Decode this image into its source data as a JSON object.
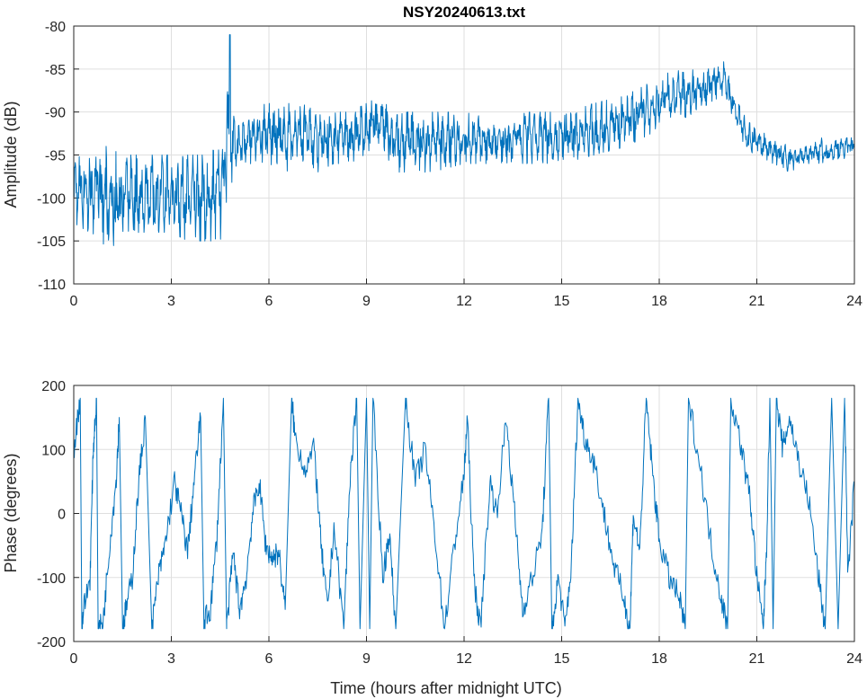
{
  "chart_data": [
    {
      "type": "line",
      "title": "NSY20240613.txt",
      "xlabel": "",
      "ylabel": "Amplitude (dB)",
      "xlim": [
        0,
        24
      ],
      "ylim": [
        -110,
        -80
      ],
      "xticks": [
        "0",
        "3",
        "6",
        "9",
        "12",
        "15",
        "18",
        "21",
        "24"
      ],
      "yticks": [
        "-80",
        "-85",
        "-90",
        "-95",
        "-100",
        "-105",
        "-110"
      ],
      "grid": true,
      "color": "#0072BD",
      "envelope_note": "columns: time (h), min dB, max dB",
      "envelope": [
        [
          0,
          -103,
          -95
        ],
        [
          0.5,
          -104,
          -94
        ],
        [
          1,
          -106,
          -94
        ],
        [
          1.5,
          -105,
          -95
        ],
        [
          2,
          -104,
          -95
        ],
        [
          2.5,
          -104,
          -95
        ],
        [
          3,
          -104,
          -95
        ],
        [
          3.5,
          -105,
          -95
        ],
        [
          4,
          -105,
          -95
        ],
        [
          4.5,
          -105,
          -94
        ],
        [
          4.8,
          -100,
          -81
        ],
        [
          5,
          -97,
          -92
        ],
        [
          5.5,
          -96,
          -89
        ],
        [
          6,
          -96,
          -89
        ],
        [
          6.5,
          -97,
          -89
        ],
        [
          7,
          -96,
          -89
        ],
        [
          7.5,
          -97,
          -90
        ],
        [
          8,
          -96,
          -90
        ],
        [
          8.5,
          -96,
          -90
        ],
        [
          9,
          -95,
          -89
        ],
        [
          9.5,
          -94,
          -88
        ],
        [
          9.8,
          -97,
          -91
        ],
        [
          10,
          -97,
          -90
        ],
        [
          11,
          -97,
          -90
        ],
        [
          12,
          -96,
          -90
        ],
        [
          13,
          -96,
          -91
        ],
        [
          14,
          -96,
          -90
        ],
        [
          15,
          -96,
          -90
        ],
        [
          16,
          -95,
          -89
        ],
        [
          17,
          -94,
          -88
        ],
        [
          17.5,
          -93,
          -87
        ],
        [
          18,
          -92,
          -86
        ],
        [
          18.5,
          -90,
          -85
        ],
        [
          19,
          -91,
          -85
        ],
        [
          19.5,
          -89,
          -85
        ],
        [
          20,
          -88,
          -84
        ],
        [
          20.3,
          -91,
          -88
        ],
        [
          20.7,
          -95,
          -91
        ],
        [
          21,
          -95,
          -92
        ],
        [
          21.5,
          -96,
          -93
        ],
        [
          22,
          -97,
          -94
        ],
        [
          22.5,
          -96,
          -94
        ],
        [
          23,
          -96,
          -93
        ],
        [
          23.5,
          -96,
          -93
        ],
        [
          24,
          -95,
          -93
        ]
      ]
    },
    {
      "type": "line",
      "title": "",
      "xlabel": "Time (hours after midnight UTC)",
      "ylabel": "Phase (degrees)",
      "xlim": [
        0,
        24
      ],
      "ylim": [
        -200,
        200
      ],
      "xticks": [
        "0",
        "3",
        "6",
        "9",
        "12",
        "15",
        "18",
        "21",
        "24"
      ],
      "yticks": [
        "200",
        "100",
        "0",
        "-100",
        "-200"
      ],
      "grid": true,
      "color": "#0072BD",
      "points": [
        [
          0,
          100
        ],
        [
          0.2,
          180
        ],
        [
          0.25,
          -180
        ],
        [
          0.3,
          -150
        ],
        [
          0.5,
          -100
        ],
        [
          0.6,
          100
        ],
        [
          0.7,
          180
        ],
        [
          0.75,
          -180
        ],
        [
          0.9,
          -170
        ],
        [
          1.1,
          -50
        ],
        [
          1.3,
          50
        ],
        [
          1.4,
          150
        ],
        [
          1.5,
          -180
        ],
        [
          1.6,
          -150
        ],
        [
          1.8,
          -100
        ],
        [
          2.0,
          50
        ],
        [
          2.2,
          150
        ],
        [
          2.4,
          -180
        ],
        [
          2.6,
          -100
        ],
        [
          2.8,
          -50
        ],
        [
          3.1,
          50
        ],
        [
          3.3,
          0
        ],
        [
          3.5,
          -60
        ],
        [
          3.7,
          50
        ],
        [
          3.9,
          150
        ],
        [
          4.0,
          -170
        ],
        [
          4.2,
          -150
        ],
        [
          4.4,
          -40
        ],
        [
          4.6,
          180
        ],
        [
          4.7,
          -180
        ],
        [
          4.9,
          -60
        ],
        [
          5.1,
          -150
        ],
        [
          5.3,
          -100
        ],
        [
          5.5,
          0
        ],
        [
          5.7,
          50
        ],
        [
          5.9,
          -50
        ],
        [
          6.1,
          -70
        ],
        [
          6.3,
          -60
        ],
        [
          6.5,
          -150
        ],
        [
          6.7,
          180
        ],
        [
          6.8,
          120
        ],
        [
          7.1,
          70
        ],
        [
          7.4,
          100
        ],
        [
          7.6,
          -50
        ],
        [
          7.8,
          -150
        ],
        [
          8.0,
          -20
        ],
        [
          8.3,
          -180
        ],
        [
          8.5,
          60
        ],
        [
          8.7,
          180
        ],
        [
          8.8,
          -180
        ],
        [
          9.0,
          180
        ],
        [
          9.1,
          -180
        ],
        [
          9.2,
          180
        ],
        [
          9.5,
          -100
        ],
        [
          9.7,
          -30
        ],
        [
          9.9,
          -180
        ],
        [
          10.2,
          180
        ],
        [
          10.5,
          50
        ],
        [
          10.8,
          100
        ],
        [
          11.1,
          -30
        ],
        [
          11.4,
          -180
        ],
        [
          11.7,
          -50
        ],
        [
          12.0,
          60
        ],
        [
          12.1,
          150
        ],
        [
          12.3,
          -100
        ],
        [
          12.5,
          -180
        ],
        [
          12.8,
          50
        ],
        [
          13.0,
          0
        ],
        [
          13.3,
          150
        ],
        [
          13.6,
          -30
        ],
        [
          13.8,
          -150
        ],
        [
          14.1,
          -100
        ],
        [
          14.4,
          -30
        ],
        [
          14.6,
          180
        ],
        [
          14.7,
          -180
        ],
        [
          14.9,
          -100
        ],
        [
          15.1,
          -180
        ],
        [
          15.3,
          -80
        ],
        [
          15.5,
          180
        ],
        [
          15.7,
          120
        ],
        [
          16.0,
          80
        ],
        [
          16.3,
          0
        ],
        [
          16.6,
          -80
        ],
        [
          16.9,
          -130
        ],
        [
          17.1,
          -180
        ],
        [
          17.2,
          0
        ],
        [
          17.4,
          -60
        ],
        [
          17.6,
          180
        ],
        [
          17.8,
          60
        ],
        [
          18.0,
          -40
        ],
        [
          18.3,
          -100
        ],
        [
          18.6,
          -130
        ],
        [
          18.8,
          -180
        ],
        [
          18.9,
          180
        ],
        [
          19.3,
          60
        ],
        [
          19.6,
          -50
        ],
        [
          19.9,
          -130
        ],
        [
          20.1,
          -180
        ],
        [
          20.2,
          180
        ],
        [
          20.5,
          110
        ],
        [
          20.8,
          20
        ],
        [
          21.0,
          -100
        ],
        [
          21.2,
          -180
        ],
        [
          21.3,
          -50
        ],
        [
          21.4,
          180
        ],
        [
          21.5,
          -180
        ],
        [
          21.6,
          180
        ],
        [
          21.8,
          100
        ],
        [
          22.0,
          150
        ],
        [
          22.3,
          80
        ],
        [
          22.6,
          20
        ],
        [
          22.9,
          -100
        ],
        [
          23.1,
          -180
        ],
        [
          23.3,
          180
        ],
        [
          23.5,
          -180
        ],
        [
          23.7,
          180
        ],
        [
          23.8,
          -100
        ],
        [
          24,
          50
        ]
      ]
    }
  ]
}
